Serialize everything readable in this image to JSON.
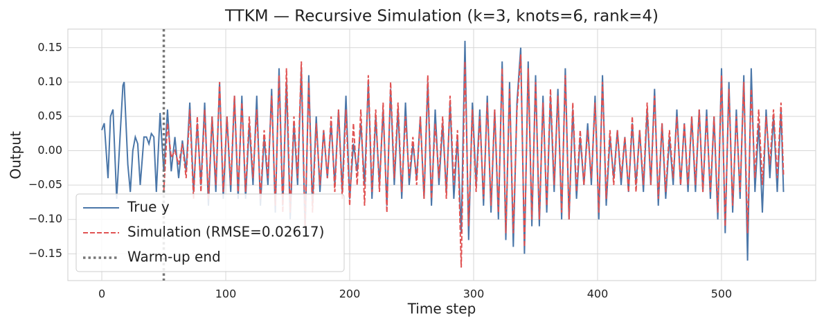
{
  "chart_data": {
    "type": "line",
    "title": "TTKM — Recursive Simulation (k=3, knots=6, rank=4)",
    "xlabel": "Time step",
    "ylabel": "Output",
    "x": [
      0,
      2,
      5,
      7,
      9,
      12,
      15,
      17,
      18,
      21,
      23,
      25,
      27,
      29,
      31,
      34,
      36,
      38,
      40,
      42,
      44,
      47,
      50,
      53,
      56,
      59,
      62,
      65,
      68,
      71,
      74,
      77,
      80,
      83,
      86,
      89,
      92,
      95,
      98,
      101,
      104,
      107,
      110,
      113,
      116,
      119,
      122,
      125,
      128,
      131,
      134,
      137,
      140,
      143,
      146,
      149,
      152,
      155,
      158,
      161,
      164,
      167,
      170,
      173,
      176,
      179,
      182,
      185,
      188,
      191,
      194,
      197,
      200,
      203,
      206,
      209,
      212,
      215,
      218,
      221,
      224,
      227,
      230,
      233,
      236,
      239,
      242,
      245,
      248,
      251,
      254,
      257,
      260,
      263,
      266,
      269,
      272,
      275,
      278,
      281,
      284,
      287,
      290,
      293,
      296,
      299,
      302,
      305,
      308,
      311,
      314,
      317,
      320,
      323,
      326,
      329,
      332,
      335,
      338,
      341,
      344,
      347,
      350,
      353,
      356,
      359,
      362,
      365,
      368,
      371,
      374,
      377,
      380,
      383,
      386,
      389,
      392,
      395,
      398,
      401,
      404,
      407,
      410,
      413,
      416,
      419,
      422,
      425,
      428,
      431,
      434,
      437,
      440,
      443,
      446,
      449,
      452,
      455,
      458,
      461,
      464,
      467,
      470,
      473,
      476,
      479,
      482,
      485,
      488,
      491,
      494,
      497,
      500,
      503,
      506,
      509,
      512,
      515,
      518,
      521,
      524,
      527,
      530,
      533,
      536,
      539,
      542,
      545,
      548,
      550
    ],
    "series": [
      {
        "name": "True y",
        "color": "#4a76a8",
        "dash": "solid",
        "values": [
          0.03,
          0.04,
          -0.04,
          0.05,
          0.06,
          -0.07,
          0.03,
          0.095,
          0.1,
          -0.02,
          -0.06,
          0,
          0.02,
          0.01,
          -0.05,
          0.02,
          0.02,
          0.01,
          0.025,
          0.02,
          -0.06,
          0.055,
          -0.03,
          0.06,
          -0.03,
          0.02,
          -0.04,
          0.015,
          -0.03,
          0.07,
          -0.06,
          0.04,
          -0.05,
          0.07,
          -0.08,
          0.05,
          -0.06,
          0.1,
          -0.07,
          0.05,
          -0.06,
          0.08,
          -0.07,
          0.08,
          -0.07,
          0.04,
          -0.05,
          0.08,
          -0.08,
          0.02,
          -0.05,
          0.09,
          -0.09,
          0.12,
          -0.08,
          0.1,
          -0.1,
          0.04,
          -0.05,
          0.12,
          -0.12,
          0.11,
          -0.08,
          0.05,
          -0.06,
          0.03,
          -0.04,
          0.04,
          -0.05,
          0.06,
          -0.06,
          0.08,
          -0.07,
          0.01,
          -0.03,
          0.04,
          -0.05,
          0.1,
          -0.07,
          0.05,
          -0.05,
          0.06,
          -0.08,
          0.09,
          -0.05,
          0.06,
          -0.07,
          0.07,
          -0.05,
          0.01,
          -0.04,
          0.05,
          -0.07,
          0.1,
          -0.08,
          0.06,
          -0.05,
          0.04,
          -0.06,
          0.07,
          -0.07,
          0.02,
          -0.12,
          0.16,
          -0.13,
          0.07,
          -0.05,
          0.06,
          -0.08,
          0.08,
          -0.09,
          0.06,
          -0.1,
          0.13,
          -0.13,
          0.1,
          -0.14,
          0.07,
          0.15,
          -0.15,
          0.13,
          -0.11,
          0.11,
          -0.11,
          0.08,
          -0.09,
          0.08,
          -0.06,
          0.09,
          -0.1,
          0.12,
          -0.1,
          0.06,
          -0.07,
          0.02,
          -0.05,
          0.04,
          -0.05,
          0.08,
          -0.1,
          0.11,
          -0.08,
          0.02,
          -0.04,
          0.03,
          -0.05,
          0.02,
          -0.06,
          0.04,
          -0.05,
          0.03,
          -0.06,
          0.06,
          -0.05,
          0.09,
          -0.08,
          0.04,
          -0.07,
          0.02,
          -0.05,
          0.06,
          -0.05,
          0.04,
          -0.06,
          0.05,
          -0.06,
          0.06,
          -0.06,
          0.06,
          -0.07,
          0.05,
          -0.1,
          0.12,
          -0.12,
          0.1,
          -0.09,
          0.06,
          -0.07,
          0.11,
          -0.16,
          0.12,
          -0.06,
          0.04,
          -0.09,
          0.06,
          -0.04,
          0.05,
          -0.06,
          0.06,
          -0.06
        ]
      },
      {
        "name": "Simulation  (RMSE=0.02617)",
        "color": "#e05252",
        "dash": "dashed",
        "values": [
          null,
          null,
          null,
          null,
          null,
          null,
          null,
          null,
          null,
          null,
          null,
          null,
          null,
          null,
          null,
          null,
          null,
          null,
          null,
          null,
          null,
          null,
          -0.06,
          0.04,
          -0.01,
          0.0,
          -0.02,
          0.01,
          -0.04,
          0.06,
          -0.07,
          0.05,
          -0.06,
          0.06,
          -0.07,
          0.05,
          -0.05,
          0.1,
          -0.06,
          0.05,
          -0.05,
          0.08,
          -0.06,
          0.07,
          -0.06,
          0.05,
          -0.04,
          0.06,
          -0.07,
          0.03,
          -0.04,
          0.08,
          -0.08,
          0.11,
          -0.09,
          0.12,
          -0.09,
          0.05,
          -0.04,
          0.13,
          -0.11,
          0.1,
          -0.09,
          0.04,
          -0.05,
          0.03,
          -0.04,
          0.05,
          -0.06,
          0.06,
          -0.07,
          0.06,
          -0.08,
          0.04,
          -0.05,
          0.06,
          -0.08,
          0.11,
          -0.06,
          0.06,
          -0.06,
          0.07,
          -0.09,
          0.1,
          -0.04,
          0.07,
          -0.06,
          0.05,
          -0.04,
          0.02,
          -0.05,
          0.05,
          -0.07,
          0.11,
          -0.07,
          0.04,
          -0.04,
          0.05,
          -0.07,
          0.08,
          -0.05,
          0.03,
          -0.17,
          0.13,
          -0.11,
          0.06,
          -0.06,
          0.05,
          -0.07,
          0.07,
          -0.08,
          0.06,
          -0.09,
          0.12,
          -0.12,
          0.09,
          -0.12,
          0.06,
          0.14,
          -0.14,
          0.12,
          -0.1,
          0.1,
          -0.1,
          0.07,
          -0.08,
          0.09,
          -0.05,
          0.08,
          -0.09,
          0.11,
          -0.1,
          0.07,
          -0.06,
          0.03,
          -0.05,
          0.03,
          -0.04,
          0.07,
          -0.09,
          0.1,
          -0.07,
          0.03,
          -0.05,
          0.03,
          -0.04,
          0.02,
          -0.06,
          0.05,
          -0.06,
          0.03,
          -0.05,
          0.07,
          -0.05,
          0.08,
          -0.07,
          0.04,
          -0.06,
          0.03,
          -0.04,
          0.05,
          -0.05,
          0.04,
          -0.05,
          0.05,
          -0.05,
          0.06,
          -0.06,
          0.05,
          -0.06,
          0.05,
          -0.09,
          0.11,
          -0.11,
          0.09,
          -0.08,
          0.05,
          -0.06,
          0.1,
          -0.12,
          0.09,
          -0.04,
          0.06,
          -0.05,
          0.05,
          -0.02,
          0.06,
          -0.04,
          0.07,
          -0.035
        ]
      }
    ],
    "vline": {
      "name": "Warm-up end",
      "x": 50,
      "color": "#777777"
    },
    "xlim": [
      -27.4,
      576
    ],
    "ylim": [
      -0.189,
      0.177
    ],
    "xticks": [
      0,
      100,
      200,
      300,
      400,
      500
    ],
    "yticks": [
      {
        "value": -0.15,
        "label": "−0.15"
      },
      {
        "value": -0.1,
        "label": "−0.10"
      },
      {
        "value": -0.05,
        "label": "−0.05"
      },
      {
        "value": 0,
        "label": "0.00"
      },
      {
        "value": 0.05,
        "label": "0.05"
      },
      {
        "value": 0.1,
        "label": "0.10"
      },
      {
        "value": 0.15,
        "label": "0.15"
      }
    ],
    "grid": true,
    "legend": "lower left"
  }
}
